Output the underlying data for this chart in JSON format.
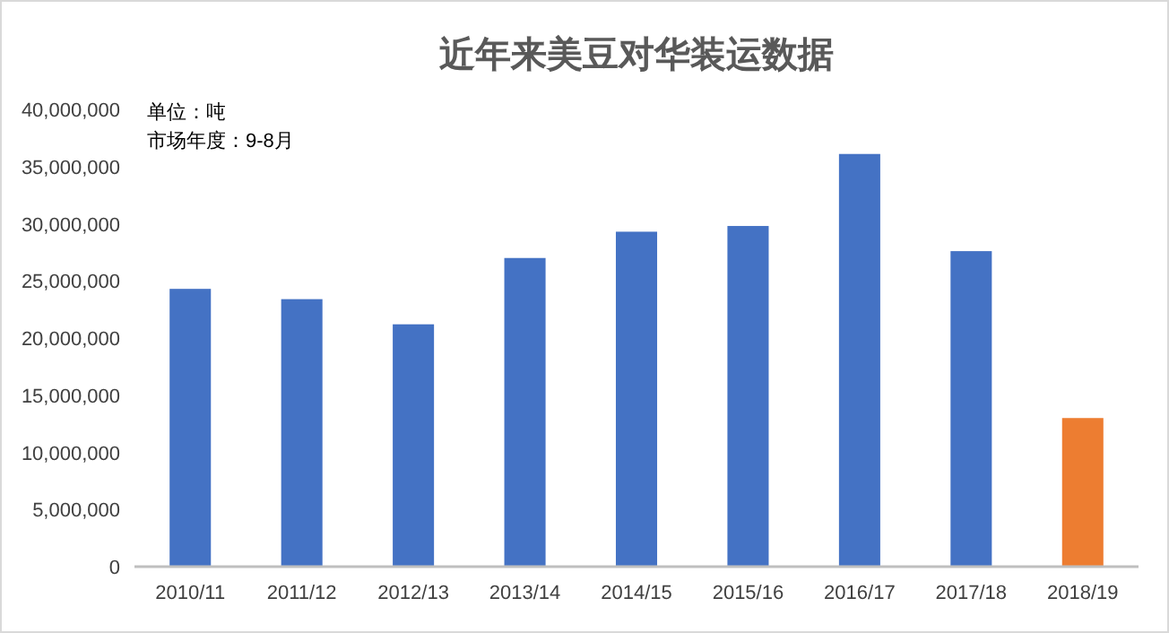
{
  "chart_data": {
    "type": "bar",
    "title": "近年来美豆对华装运数据",
    "annotations": [
      "单位：吨",
      "市场年度：9-8月"
    ],
    "categories": [
      "2010/11",
      "2011/12",
      "2012/13",
      "2013/14",
      "2014/15",
      "2015/16",
      "2016/17",
      "2017/18",
      "2018/19"
    ],
    "values": [
      24300000,
      23400000,
      21200000,
      27000000,
      29300000,
      29800000,
      36100000,
      27600000,
      13000000
    ],
    "colors": [
      "#4472c4",
      "#4472c4",
      "#4472c4",
      "#4472c4",
      "#4472c4",
      "#4472c4",
      "#4472c4",
      "#4472c4",
      "#ed7d31"
    ],
    "ylim": [
      0,
      40000000
    ],
    "yticks": [
      {
        "value": 0,
        "label": "0"
      },
      {
        "value": 5000000,
        "label": "5,000,000"
      },
      {
        "value": 10000000,
        "label": "10,000,000"
      },
      {
        "value": 15000000,
        "label": "15,000,000"
      },
      {
        "value": 20000000,
        "label": "20,000,000"
      },
      {
        "value": 25000000,
        "label": "25,000,000"
      },
      {
        "value": 30000000,
        "label": "30,000,000"
      },
      {
        "value": 35000000,
        "label": "35,000,000"
      },
      {
        "value": 40000000,
        "label": "40,000,000"
      }
    ],
    "grid": false
  }
}
